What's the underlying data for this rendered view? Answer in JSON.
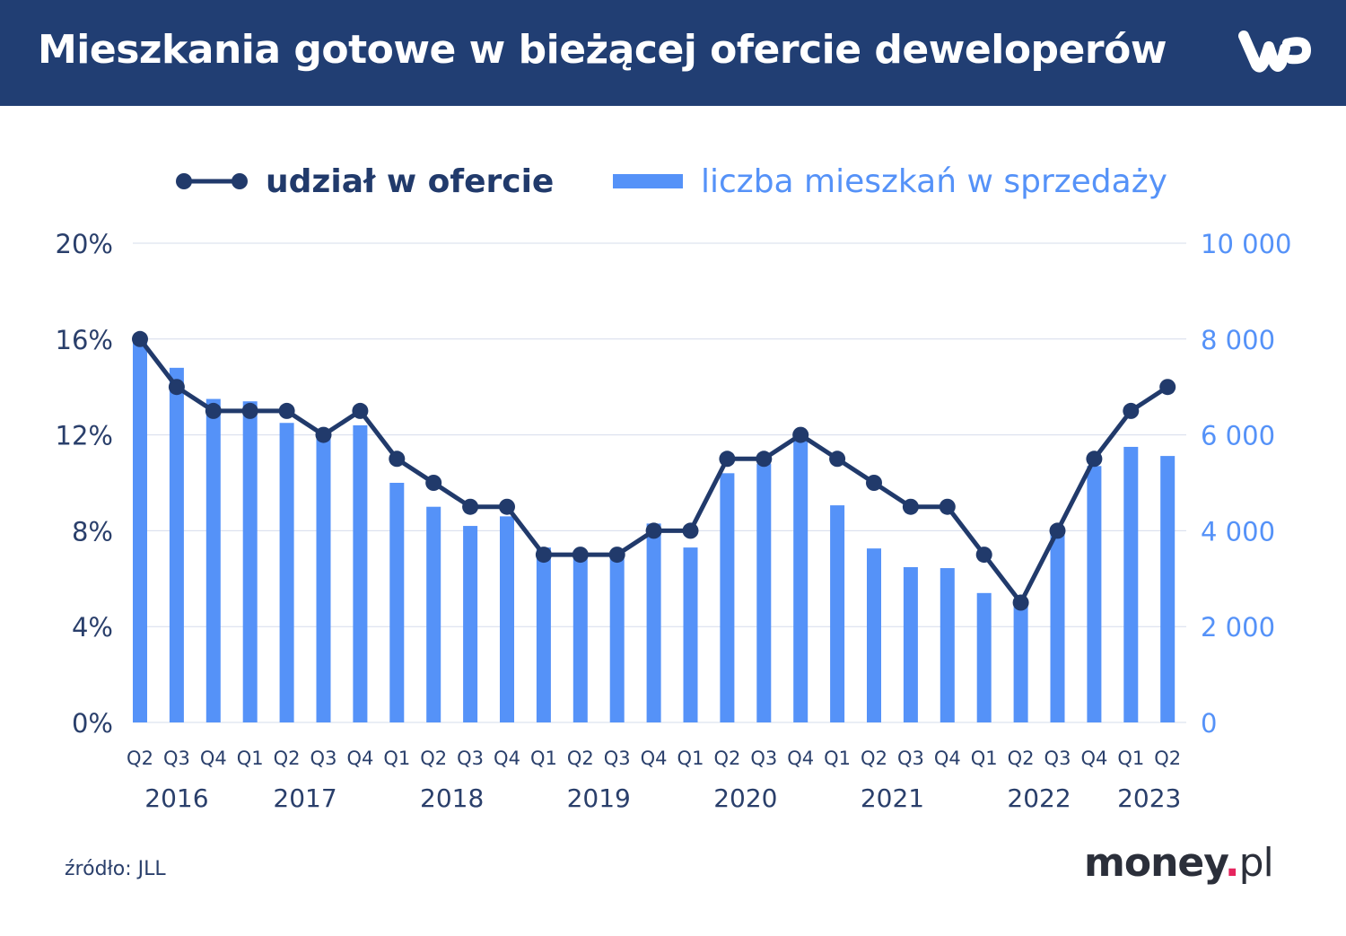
{
  "header": {
    "title": "Mieszkania gotowe w bieżącej ofercie deweloperów",
    "logo": "WP"
  },
  "footer": {
    "source": "źródło: JLL",
    "brand_main": "money",
    "brand_dot": ".",
    "brand_tld": "pl"
  },
  "colors": {
    "header_bg": "#213e73",
    "line": "#213a6b",
    "bars": "#5592f8",
    "grid": "#d6dceb",
    "brand_dot": "#e5255e"
  },
  "chart_data": {
    "type": "bar+line",
    "legend_position": "top",
    "grid": true,
    "categories": [
      "Q2",
      "Q3",
      "Q4",
      "Q1",
      "Q2",
      "Q3",
      "Q4",
      "Q1",
      "Q2",
      "Q3",
      "Q4",
      "Q1",
      "Q2",
      "Q3",
      "Q4",
      "Q1",
      "Q2",
      "Q3",
      "Q4",
      "Q1",
      "Q2",
      "Q3",
      "Q4",
      "Q1",
      "Q2",
      "Q3",
      "Q4",
      "Q1",
      "Q2"
    ],
    "years": [
      {
        "label": "2016",
        "from": 0,
        "to": 2
      },
      {
        "label": "2017",
        "from": 3,
        "to": 6
      },
      {
        "label": "2018",
        "from": 7,
        "to": 10
      },
      {
        "label": "2019",
        "from": 11,
        "to": 14
      },
      {
        "label": "2020",
        "from": 15,
        "to": 18
      },
      {
        "label": "2021",
        "from": 19,
        "to": 22
      },
      {
        "label": "2022",
        "from": 23,
        "to": 26
      },
      {
        "label": "2023",
        "from": 27,
        "to": 28
      }
    ],
    "series": [
      {
        "name": "udział w ofercie",
        "type": "line",
        "axis": "left",
        "values": [
          16,
          14,
          13,
          13,
          13,
          12,
          13,
          11,
          10,
          9,
          9,
          7,
          7,
          7,
          8,
          8,
          11,
          11,
          12,
          11,
          10,
          9,
          9,
          7,
          5,
          8,
          11,
          13,
          14
        ]
      },
      {
        "name": "liczba mieszkań w sprzedaży",
        "type": "bar",
        "axis": "right",
        "values": [
          8000,
          7400,
          6750,
          6700,
          6250,
          6000,
          6200,
          5000,
          4500,
          4100,
          4300,
          3650,
          3500,
          3450,
          4150,
          3650,
          5200,
          5400,
          5950,
          4530,
          3630,
          3240,
          3220,
          2700,
          2450,
          3950,
          5350,
          5750,
          5560
        ]
      }
    ],
    "left_axis": {
      "ylim": [
        0,
        20
      ],
      "ticks": [
        "0%",
        "4%",
        "8%",
        "12%",
        "16%",
        "20%"
      ],
      "tick_values": [
        0,
        4,
        8,
        12,
        16,
        20
      ]
    },
    "right_axis": {
      "ylim": [
        0,
        10000
      ],
      "ticks": [
        "0",
        "2 000",
        "4 000",
        "6 000",
        "8 000",
        "10 000"
      ],
      "tick_values": [
        0,
        2000,
        4000,
        6000,
        8000,
        10000
      ]
    }
  }
}
